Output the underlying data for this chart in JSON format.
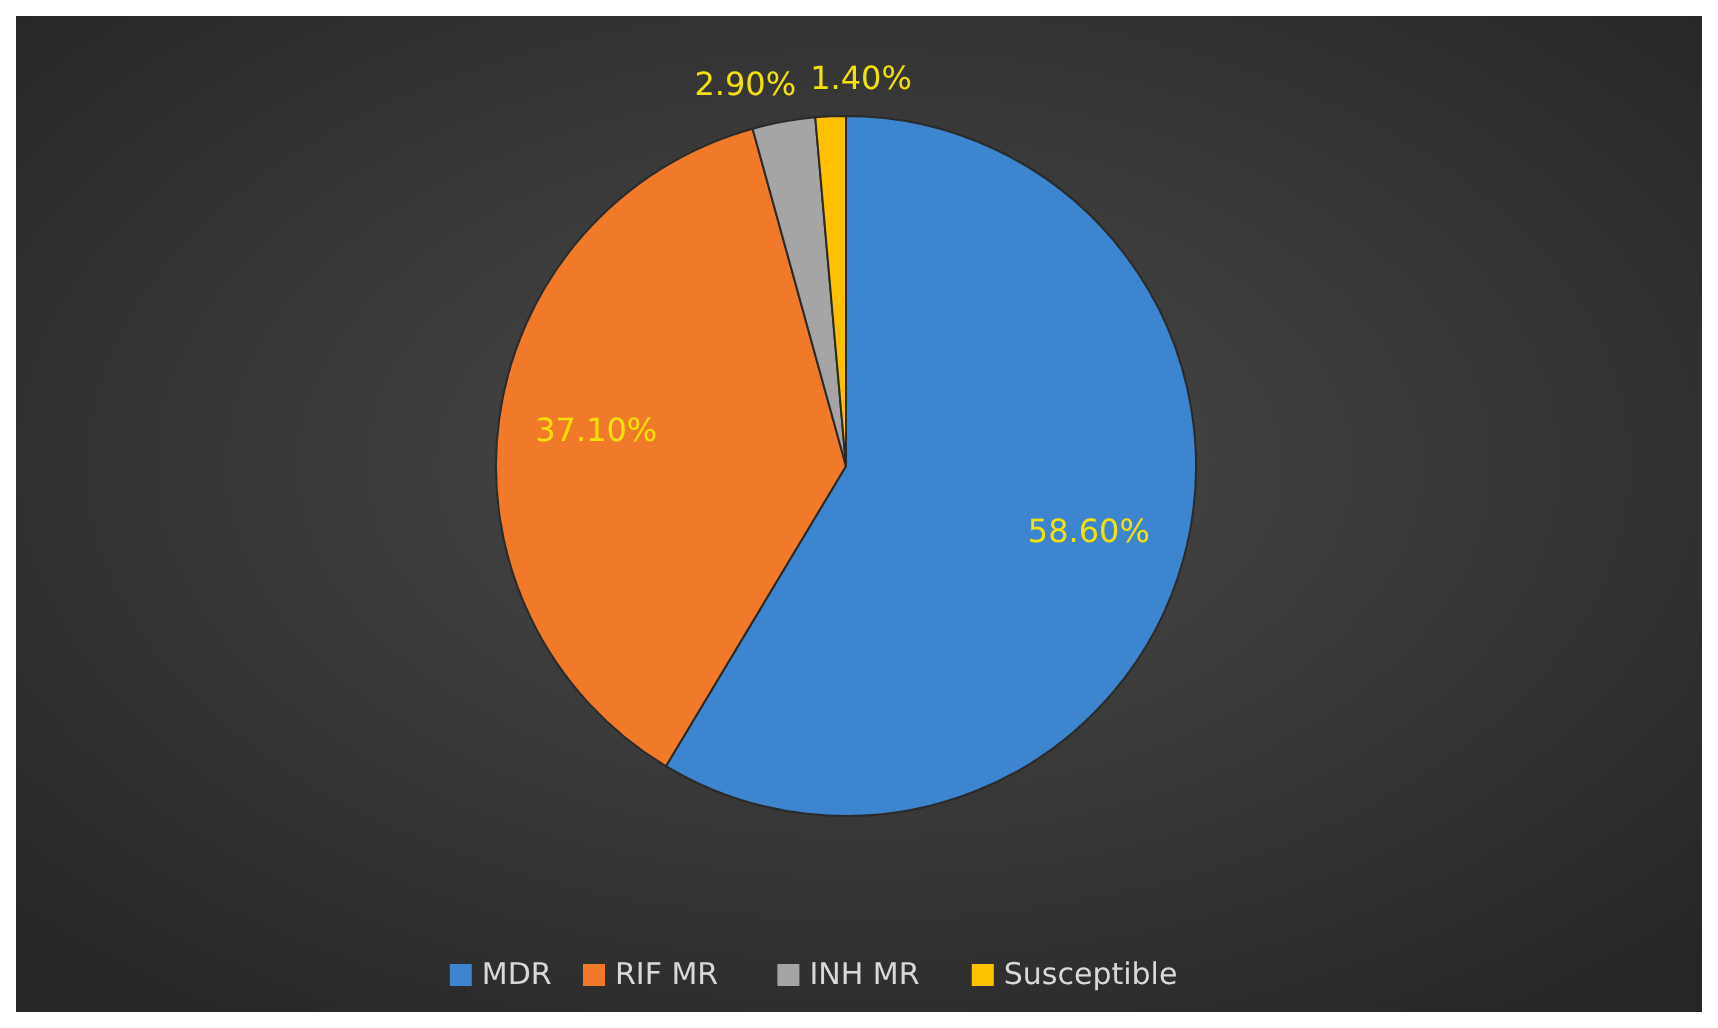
{
  "chart_data": {
    "type": "pie",
    "categories": [
      "MDR",
      "RIF MR",
      "INH MR",
      "Susceptible"
    ],
    "values": [
      58.6,
      37.1,
      2.9,
      1.4
    ],
    "colors": [
      "#3d85cf",
      "#f07a2a",
      "#a5a5a5",
      "#ffc000"
    ],
    "value_labels": [
      "58.60%",
      "37.10%",
      "2.90%",
      "1.40%"
    ],
    "legend": "bottom"
  }
}
